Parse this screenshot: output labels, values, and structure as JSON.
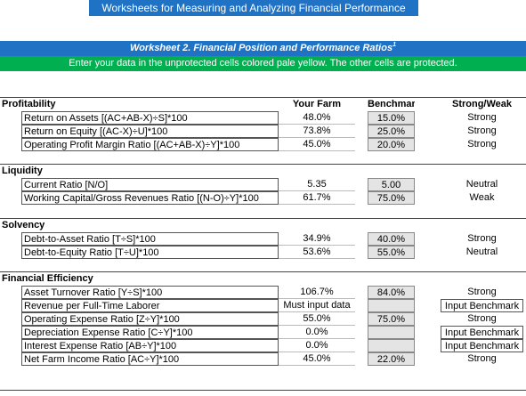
{
  "header": {
    "title": "Worksheets for Measuring and Analyzing Financial Performance",
    "subtitle": "Worksheet 2. Financial Position and Performance Ratios",
    "footnote_mark": "1",
    "instructions": "Enter your data in the unprotected cells colored pale yellow. The other cells are protected."
  },
  "table": {
    "columns": [
      "Your Farm",
      "Benchmark",
      "Strong/Weak"
    ],
    "sections": [
      {
        "name": "Profitability",
        "rows": [
          {
            "label": "Return on Assets [(AC+AB-X)÷S]*100",
            "your_farm": "48.0%",
            "benchmark": "15.0%",
            "status": "Strong"
          },
          {
            "label": "Return on Equity [(AC-X)÷U]*100",
            "your_farm": "73.8%",
            "benchmark": "25.0%",
            "status": "Strong"
          },
          {
            "label": "Operating Profit Margin Ratio [(AC+AB-X)÷Y]*100",
            "your_farm": "45.0%",
            "benchmark": "20.0%",
            "status": "Strong"
          }
        ]
      },
      {
        "name": "Liquidity",
        "rows": [
          {
            "label": "Current Ratio [N/O]",
            "your_farm": "5.35",
            "benchmark": "5.00",
            "status": "Neutral"
          },
          {
            "label": "Working Capital/Gross Revenues Ratio [(N-O)÷Y]*100",
            "your_farm": "61.7%",
            "benchmark": "75.0%",
            "status": "Weak"
          }
        ]
      },
      {
        "name": "Solvency",
        "rows": [
          {
            "label": "Debt-to-Asset Ratio [T÷S]*100",
            "your_farm": "34.9%",
            "benchmark": "40.0%",
            "status": "Strong"
          },
          {
            "label": "Debt-to-Equity Ratio [T÷U]*100",
            "your_farm": "53.6%",
            "benchmark": "55.0%",
            "status": "Neutral"
          }
        ]
      },
      {
        "name": "Financial Efficiency",
        "rows": [
          {
            "label": "Asset Turnover Ratio [Y÷S]*100",
            "your_farm": "106.7%",
            "benchmark": "84.0%",
            "status": "Strong"
          },
          {
            "label": "Revenue per Full-Time Laborer",
            "your_farm": "Must input data",
            "benchmark": null,
            "status": "Input Benchmark"
          },
          {
            "label": "Operating Expense Ratio [Z÷Y]*100",
            "your_farm": "55.0%",
            "benchmark": "75.0%",
            "status": "Strong"
          },
          {
            "label": "Depreciation Expense Ratio [C÷Y]*100",
            "your_farm": "0.0%",
            "benchmark": null,
            "status": "Input Benchmark"
          },
          {
            "label": "Interest Expense Ratio [AB÷Y]*100",
            "your_farm": "0.0%",
            "benchmark": null,
            "status": "Input Benchmark"
          },
          {
            "label": "Net Farm Income Ratio [AC÷Y]*100",
            "your_farm": "45.0%",
            "benchmark": "22.0%",
            "status": "Strong"
          }
        ]
      }
    ]
  }
}
